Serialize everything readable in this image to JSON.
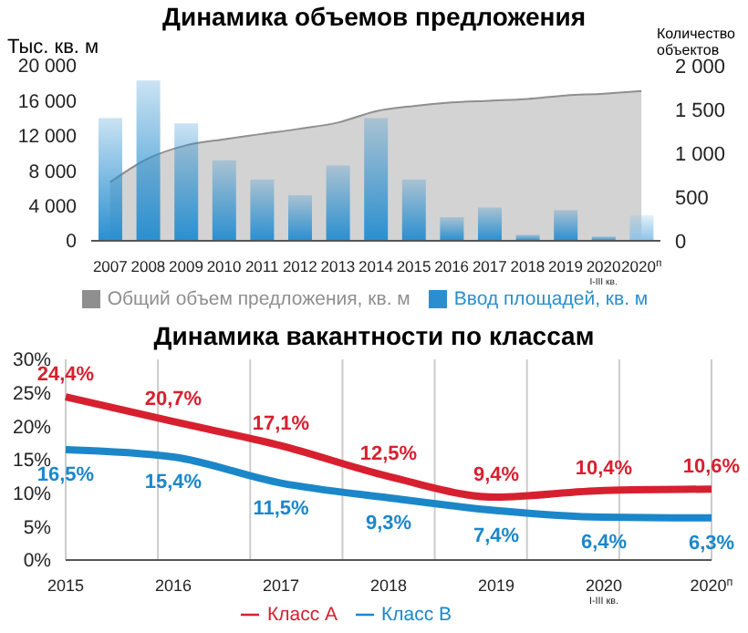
{
  "chart_data": [
    {
      "type": "bar",
      "title": "Динамика объемов предложения",
      "ylabel": "Тыс. кв. м",
      "y2label": "Количество объектов",
      "categories": [
        "2007",
        "2008",
        "2009",
        "2010",
        "2011",
        "2012",
        "2013",
        "2014",
        "2015",
        "2016",
        "2017",
        "2018",
        "2019",
        "2020$_{I-III кв.}$",
        "2020$^{п}$"
      ],
      "series": [
        {
          "name": "Общий объем предложения, кв. м",
          "type": "area",
          "color": "#b5b5b5",
          "values": [
            6700,
            9400,
            10900,
            11600,
            12200,
            12800,
            13500,
            14800,
            15400,
            15800,
            16000,
            16200,
            16600,
            16800,
            17100
          ]
        },
        {
          "name": "Ввод площадей, кв. м",
          "type": "bar",
          "color": "#2a8fd0",
          "colors": [
            "#2a8fd0",
            "#2a8fd0",
            "#2a8fd0",
            "#2a8fd0",
            "#2a8fd0",
            "#2a8fd0",
            "#2a8fd0",
            "#2a8fd0",
            "#2a8fd0",
            "#2a8fd0",
            "#2a8fd0",
            "#2a8fd0",
            "#2a8fd0",
            "#2a8fd0",
            "#8cc3e8"
          ],
          "values": [
            14000,
            18300,
            13400,
            9200,
            7000,
            5200,
            8600,
            14000,
            7000,
            2700,
            3800,
            700,
            3500,
            500,
            2900
          ]
        }
      ],
      "ylim": [
        0,
        20000
      ],
      "yticks": [
        {
          "value": 0,
          "label": "0"
        },
        {
          "value": 4000,
          "label": "4 000"
        },
        {
          "value": 8000,
          "label": "8 000"
        },
        {
          "value": 12000,
          "label": "12 000"
        },
        {
          "value": 16000,
          "label": "16 000"
        },
        {
          "value": 20000,
          "label": "20 000"
        }
      ],
      "y2lim": [
        0,
        2000
      ],
      "y2ticks": [
        {
          "value": 0,
          "label": "0"
        },
        {
          "value": 500,
          "label": "500"
        },
        {
          "value": 1000,
          "label": "1 000"
        },
        {
          "value": 1500,
          "label": "1 500"
        },
        {
          "value": 2000,
          "label": "2 000"
        }
      ],
      "legend": "bottom"
    },
    {
      "type": "line",
      "title": "Динамика вакантности по классам",
      "categories": [
        "2015",
        "2016",
        "2017",
        "2018",
        "2019",
        "2020$_{I-III кв.}$",
        "2020$^{п}$"
      ],
      "series": [
        {
          "name": "Класс А",
          "color": "#d7202f",
          "values": [
            24.4,
            20.7,
            17.1,
            12.5,
            9.4,
            10.4,
            10.6
          ],
          "value_labels": [
            "24,4%",
            "20,7%",
            "17,1%",
            "12,5%",
            "9,4%",
            "10,4%",
            "10,6%"
          ]
        },
        {
          "name": "Класс В",
          "color": "#1b87c9",
          "values": [
            16.5,
            15.4,
            11.5,
            9.3,
            7.4,
            6.4,
            6.3
          ],
          "value_labels": [
            "16,5%",
            "15,4%",
            "11,5%",
            "9,3%",
            "7,4%",
            "6,4%",
            "6,3%"
          ]
        }
      ],
      "ylim": [
        0,
        30
      ],
      "yticks": [
        {
          "value": 0,
          "label": "0%"
        },
        {
          "value": 5,
          "label": "5%"
        },
        {
          "value": 10,
          "label": "10%"
        },
        {
          "value": 15,
          "label": "15%"
        },
        {
          "value": 20,
          "label": "20%"
        },
        {
          "value": 25,
          "label": "25%"
        },
        {
          "value": 30,
          "label": "30%"
        }
      ],
      "grid": "x",
      "marker": "none",
      "line_style": "solid",
      "legend": "bottom"
    }
  ]
}
